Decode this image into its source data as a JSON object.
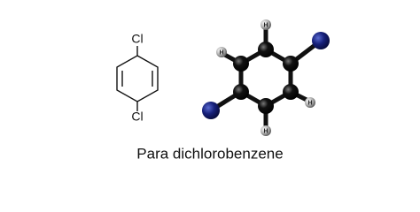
{
  "caption": "Para dichlorobenzene",
  "structure": {
    "atoms": [
      "Cl",
      "Cl"
    ]
  },
  "model": {
    "atom_labels": [
      "H",
      "H",
      "H",
      "H"
    ]
  }
}
